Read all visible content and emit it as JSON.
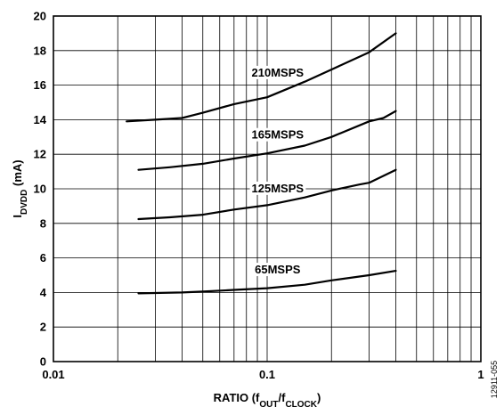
{
  "chart_data": {
    "type": "line",
    "title": "",
    "xlabel": "RATIO (f_OUT/f_CLOCK)",
    "ylabel": "I_DVDD (mA)",
    "x_scale": "log",
    "xlim": [
      0.01,
      1
    ],
    "ylim": [
      0,
      20
    ],
    "grid": true,
    "x_ticks": [
      {
        "value": 0.01,
        "label": "0.01"
      },
      {
        "value": 0.1,
        "label": "0.1"
      },
      {
        "value": 1,
        "label": "1"
      }
    ],
    "y_ticks": [
      {
        "value": 0,
        "label": "0"
      },
      {
        "value": 2,
        "label": "2"
      },
      {
        "value": 4,
        "label": "4"
      },
      {
        "value": 6,
        "label": "6"
      },
      {
        "value": 8,
        "label": "8"
      },
      {
        "value": 10,
        "label": "10"
      },
      {
        "value": 12,
        "label": "12"
      },
      {
        "value": 14,
        "label": "14"
      },
      {
        "value": 16,
        "label": "16"
      },
      {
        "value": 18,
        "label": "18"
      },
      {
        "value": 20,
        "label": "20"
      }
    ],
    "series": [
      {
        "name": "210MSPS",
        "points": [
          [
            0.022,
            13.9
          ],
          [
            0.03,
            14.0
          ],
          [
            0.04,
            14.1
          ],
          [
            0.05,
            14.4
          ],
          [
            0.07,
            14.9
          ],
          [
            0.1,
            15.3
          ],
          [
            0.15,
            16.2
          ],
          [
            0.2,
            16.9
          ],
          [
            0.3,
            17.9
          ],
          [
            0.4,
            19.0
          ]
        ]
      },
      {
        "name": "165MSPS",
        "points": [
          [
            0.025,
            11.1
          ],
          [
            0.035,
            11.25
          ],
          [
            0.05,
            11.45
          ],
          [
            0.07,
            11.75
          ],
          [
            0.1,
            12.05
          ],
          [
            0.15,
            12.5
          ],
          [
            0.2,
            13.0
          ],
          [
            0.3,
            13.9
          ],
          [
            0.35,
            14.1
          ],
          [
            0.4,
            14.5
          ]
        ]
      },
      {
        "name": "125MSPS",
        "points": [
          [
            0.025,
            8.25
          ],
          [
            0.035,
            8.35
          ],
          [
            0.05,
            8.5
          ],
          [
            0.07,
            8.8
          ],
          [
            0.1,
            9.05
          ],
          [
            0.15,
            9.5
          ],
          [
            0.2,
            9.9
          ],
          [
            0.27,
            10.25
          ],
          [
            0.3,
            10.35
          ],
          [
            0.4,
            11.1
          ]
        ]
      },
      {
        "name": "65MSPS",
        "points": [
          [
            0.025,
            3.95
          ],
          [
            0.04,
            4.0
          ],
          [
            0.05,
            4.05
          ],
          [
            0.07,
            4.15
          ],
          [
            0.1,
            4.25
          ],
          [
            0.15,
            4.45
          ],
          [
            0.2,
            4.7
          ],
          [
            0.3,
            5.0
          ],
          [
            0.4,
            5.25
          ]
        ]
      }
    ],
    "annotations": [
      {
        "text": "210MSPS",
        "x": 0.112,
        "y": 16.5
      },
      {
        "text": "165MSPS",
        "x": 0.112,
        "y": 12.9
      },
      {
        "text": "125MSPS",
        "x": 0.112,
        "y": 9.8
      },
      {
        "text": "65MSPS",
        "x": 0.112,
        "y": 5.1
      }
    ],
    "figure_code": "12911-055"
  }
}
